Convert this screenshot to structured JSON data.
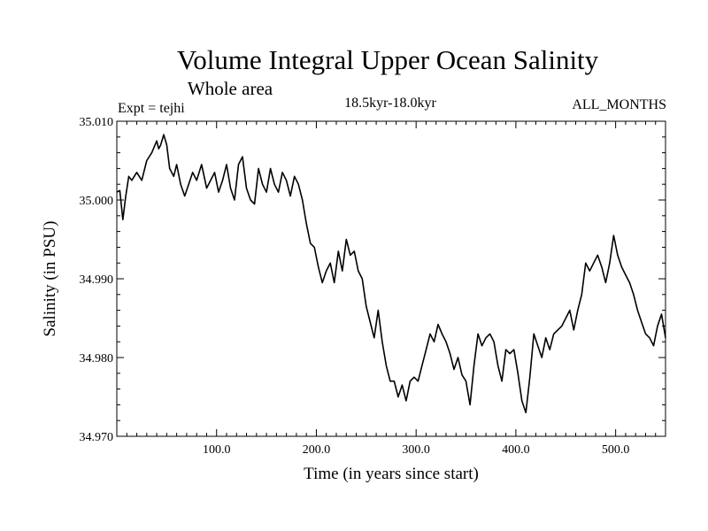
{
  "header": {
    "title": "Volume Integral Upper Ocean Salinity",
    "subtitle": "Whole area",
    "expt": "Expt = tejhi",
    "period": "18.5kyr-18.0kyr",
    "months": "ALL_MONTHS"
  },
  "chart_data": {
    "type": "line",
    "title": "Volume Integral Upper Ocean Salinity",
    "subtitle": "Whole area",
    "xlabel": "Time (in years since start)",
    "ylabel": "Salinity (in PSU)",
    "xlim": [
      0,
      550
    ],
    "ylim": [
      34.97,
      35.01
    ],
    "grid": false,
    "x_ticks": [
      100,
      200,
      300,
      400,
      500
    ],
    "x_tick_labels": [
      "100.0",
      "200.0",
      "300.0",
      "400.0",
      "500.0"
    ],
    "y_ticks": [
      34.97,
      34.98,
      34.99,
      35.0,
      35.01
    ],
    "y_tick_labels": [
      "34.970",
      "34.980",
      "34.990",
      "35.000",
      "35.010"
    ],
    "series": [
      {
        "name": "Salinity",
        "color": "#000000",
        "x": [
          0,
          3,
          6,
          9,
          12,
          15,
          20,
          25,
          30,
          35,
          40,
          42,
          44,
          47,
          50,
          53,
          57,
          60,
          64,
          68,
          72,
          76,
          80,
          85,
          90,
          94,
          98,
          102,
          106,
          110,
          114,
          118,
          122,
          126,
          130,
          134,
          138,
          142,
          146,
          150,
          154,
          158,
          162,
          166,
          170,
          174,
          178,
          182,
          186,
          190,
          194,
          198,
          202,
          206,
          210,
          214,
          218,
          222,
          226,
          230,
          234,
          238,
          242,
          246,
          250,
          254,
          258,
          262,
          266,
          270,
          274,
          278,
          282,
          286,
          290,
          294,
          298,
          302,
          306,
          310,
          314,
          318,
          322,
          326,
          330,
          334,
          338,
          342,
          346,
          350,
          354,
          358,
          362,
          366,
          370,
          374,
          378,
          382,
          386,
          390,
          394,
          398,
          402,
          406,
          410,
          414,
          418,
          422,
          426,
          430,
          434,
          438,
          442,
          446,
          450,
          454,
          458,
          462,
          466,
          470,
          474,
          478,
          482,
          486,
          490,
          494,
          498,
          502,
          506,
          510,
          514,
          518,
          522,
          526,
          530,
          534,
          538,
          542,
          546,
          550
        ],
        "values": [
          35.001,
          35.0012,
          34.9975,
          35.0005,
          35.003,
          35.0025,
          35.0035,
          35.0025,
          35.005,
          35.006,
          35.0075,
          35.0065,
          35.007,
          35.0083,
          35.007,
          35.004,
          35.003,
          35.0045,
          35.002,
          35.0005,
          35.002,
          35.0035,
          35.0025,
          35.0045,
          35.0015,
          35.0025,
          35.0035,
          35.001,
          35.0025,
          35.0045,
          35.0015,
          35.0,
          35.0045,
          35.0055,
          35.0015,
          35.0,
          34.9995,
          35.004,
          35.002,
          35.001,
          35.004,
          35.002,
          35.001,
          35.0035,
          35.0025,
          35.0005,
          35.003,
          35.002,
          35.0,
          34.997,
          34.9945,
          34.994,
          34.9915,
          34.9895,
          34.991,
          34.992,
          34.9895,
          34.9935,
          34.991,
          34.995,
          34.993,
          34.9935,
          34.991,
          34.99,
          34.9865,
          34.9845,
          34.9825,
          34.986,
          34.982,
          34.979,
          34.977,
          34.977,
          34.975,
          34.9765,
          34.9745,
          34.977,
          34.9775,
          34.977,
          34.979,
          34.981,
          34.983,
          34.982,
          34.9842,
          34.983,
          34.982,
          34.9805,
          34.9785,
          34.98,
          34.9778,
          34.977,
          34.974,
          34.979,
          34.983,
          34.9815,
          34.9825,
          34.983,
          34.982,
          34.979,
          34.977,
          34.981,
          34.9805,
          34.981,
          34.978,
          34.9745,
          34.973,
          34.9775,
          34.983,
          34.9815,
          34.98,
          34.9825,
          34.981,
          34.983,
          34.9835,
          34.984,
          34.985,
          34.986,
          34.9835,
          34.986,
          34.988,
          34.992,
          34.991,
          34.992,
          34.993,
          34.9915,
          34.9895,
          34.992,
          34.9955,
          34.993,
          34.9915,
          34.9905,
          34.9895,
          34.988,
          34.986,
          34.9845,
          34.983,
          34.9825,
          34.9815,
          34.984,
          34.9855,
          34.9825
        ]
      }
    ]
  }
}
